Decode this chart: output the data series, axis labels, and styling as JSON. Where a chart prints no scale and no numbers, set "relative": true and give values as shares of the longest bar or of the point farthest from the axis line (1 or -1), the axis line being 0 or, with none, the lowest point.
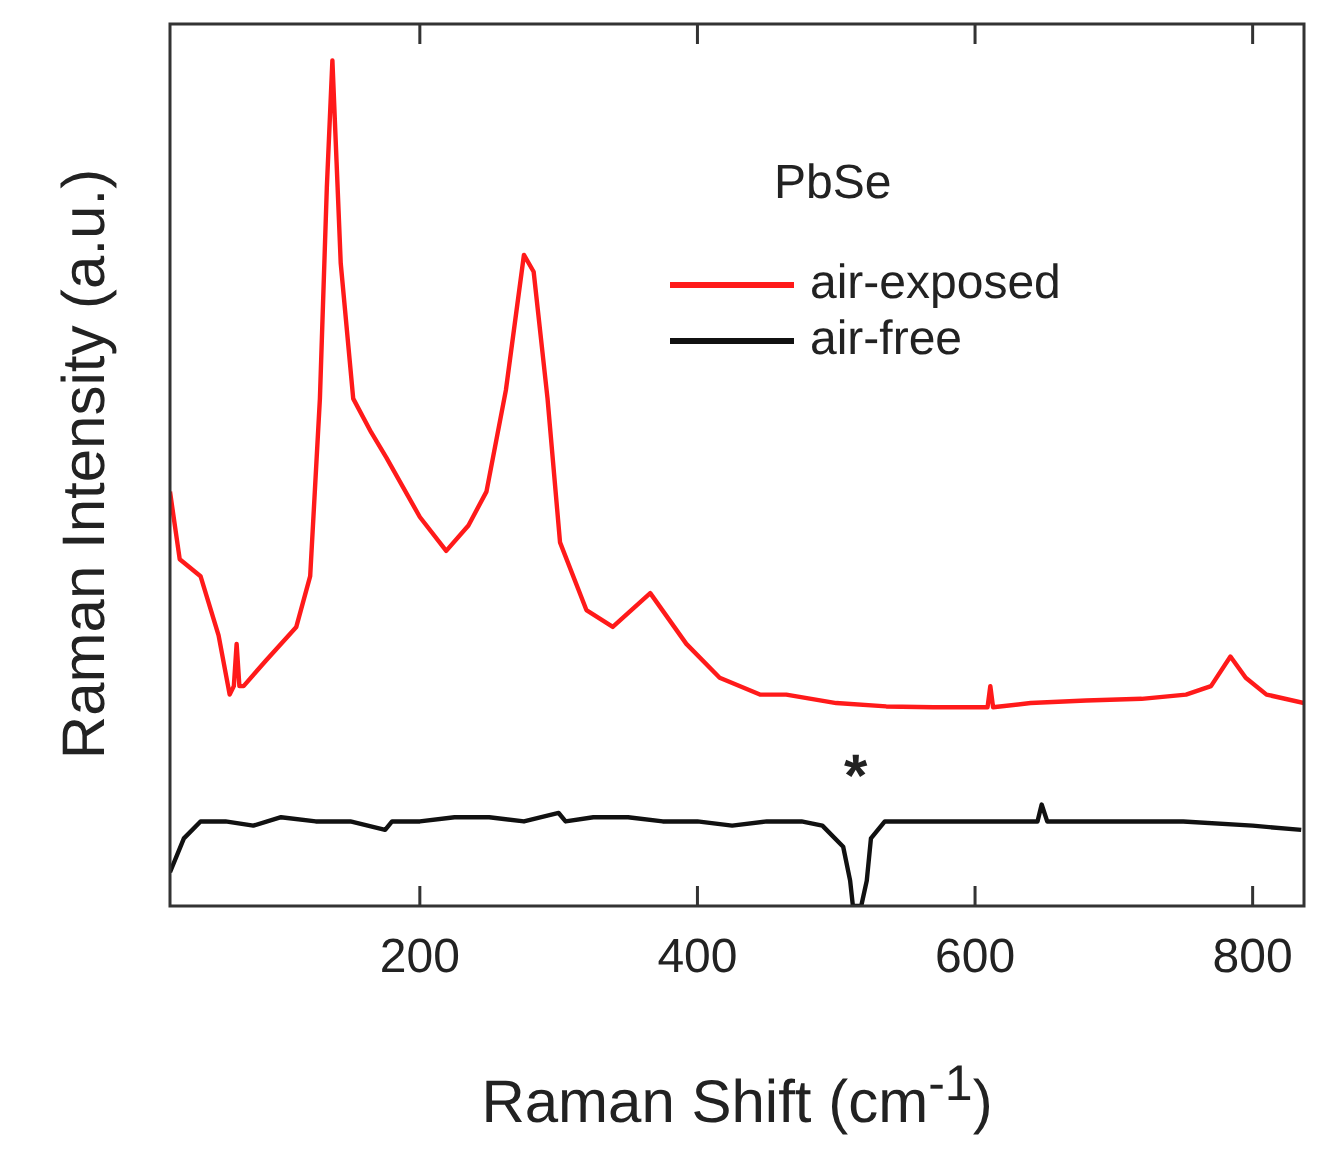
{
  "chart_data": {
    "type": "line",
    "xlabel": "Raman Shift (cm$^{-1}$)",
    "ylabel": "Raman Intensity (a.u.)",
    "legend_title": "PbSe",
    "legend": "top right",
    "relative": true,
    "grid": false,
    "marker": "none",
    "line_style": "solid",
    "xlim": [
      20,
      837
    ],
    "xticks": [
      200,
      400,
      600,
      800
    ],
    "annotations": [
      "*"
    ],
    "series": [
      {
        "name": "air-exposed",
        "color": "#ff1a1a",
        "x": [
          20,
          27,
          42,
          55,
          63,
          66,
          68,
          70,
          73,
          89,
          111,
          121,
          128,
          133,
          137,
          140,
          143,
          152,
          165,
          176,
          200,
          219,
          235,
          248,
          262,
          275,
          282,
          292,
          301,
          320,
          339,
          366,
          392,
          416,
          445,
          464,
          500,
          536,
          570,
          600,
          609,
          611,
          613,
          640,
          680,
          720,
          752,
          770,
          784,
          795,
          810,
          837
        ],
        "values": [
          0.49,
          0.41,
          0.39,
          0.32,
          0.25,
          0.26,
          0.31,
          0.26,
          0.26,
          0.29,
          0.33,
          0.39,
          0.6,
          0.85,
          1.0,
          0.88,
          0.76,
          0.6,
          0.56,
          0.53,
          0.46,
          0.42,
          0.45,
          0.49,
          0.61,
          0.77,
          0.75,
          0.6,
          0.43,
          0.35,
          0.33,
          0.37,
          0.31,
          0.27,
          0.25,
          0.25,
          0.24,
          0.236,
          0.235,
          0.235,
          0.235,
          0.26,
          0.235,
          0.24,
          0.243,
          0.245,
          0.25,
          0.26,
          0.295,
          0.27,
          0.25,
          0.24
        ]
      },
      {
        "name": "air-free",
        "color": "#111111",
        "x": [
          20,
          30,
          42,
          60,
          80,
          100,
          125,
          150,
          175,
          180,
          200,
          225,
          250,
          275,
          300,
          305,
          325,
          350,
          375,
          400,
          425,
          450,
          475,
          490,
          505,
          510,
          512,
          518,
          522,
          525,
          535,
          560,
          600,
          625,
          645,
          648,
          652,
          675,
          700,
          750,
          800,
          835
        ],
        "values": [
          0.04,
          0.08,
          0.1,
          0.1,
          0.095,
          0.105,
          0.1,
          0.1,
          0.09,
          0.1,
          0.1,
          0.105,
          0.105,
          0.1,
          0.11,
          0.1,
          0.105,
          0.105,
          0.1,
          0.1,
          0.095,
          0.1,
          0.1,
          0.095,
          0.07,
          0.03,
          0.0,
          0.0,
          0.03,
          0.08,
          0.1,
          0.1,
          0.1,
          0.1,
          0.1,
          0.12,
          0.1,
          0.1,
          0.1,
          0.1,
          0.095,
          0.09
        ]
      }
    ]
  }
}
